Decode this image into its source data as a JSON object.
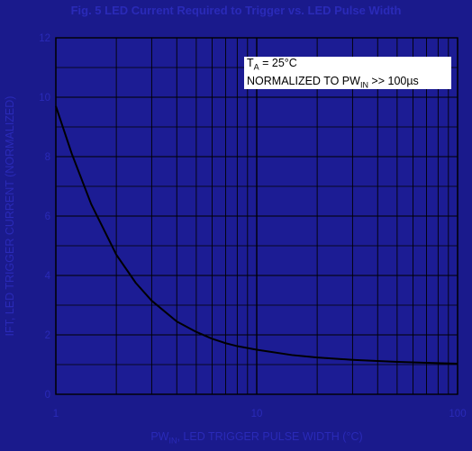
{
  "chart_data": {
    "type": "line",
    "title": "Fig. 5 LED Current Required to Trigger vs. LED Pulse Width",
    "ylabel": "IFT, LED TRIGGER CURRENT (NORMALIZED)",
    "xlabel": {
      "prefix": "PW",
      "sub": "IN",
      "suffix": ", LED TRIGGER PULSE WIDTH (°C)"
    },
    "x_scale": "log",
    "xlim": [
      1,
      100
    ],
    "ylim": [
      0,
      12
    ],
    "grid": true,
    "x_tick_labels": [
      "1",
      "10",
      "100"
    ],
    "y_tick_labels": [
      "0",
      "2",
      "4",
      "6",
      "8",
      "10",
      "12"
    ],
    "annotation": {
      "line1_pre": "T",
      "line1_sub": "A",
      "line1_post": " = 25°C",
      "line2_pre": "NORMALIZED TO PW",
      "line2_sub": "IN",
      "line2_post": " >> 100µs"
    },
    "series": [
      {
        "x": [
          1,
          1.2,
          1.5,
          2,
          2.5,
          3,
          4,
          5,
          6,
          7,
          8,
          10,
          15,
          20,
          30,
          50,
          70,
          100
        ],
        "y": [
          9.7,
          8.1,
          6.4,
          4.7,
          3.75,
          3.15,
          2.45,
          2.1,
          1.87,
          1.72,
          1.62,
          1.5,
          1.32,
          1.24,
          1.16,
          1.09,
          1.06,
          1.03
        ]
      }
    ],
    "colors": {
      "background": "#1a1a8c",
      "plot_area": "#1c1c94",
      "grid": "#000000",
      "curve": "#000000",
      "text": "#2a2ab8"
    }
  }
}
